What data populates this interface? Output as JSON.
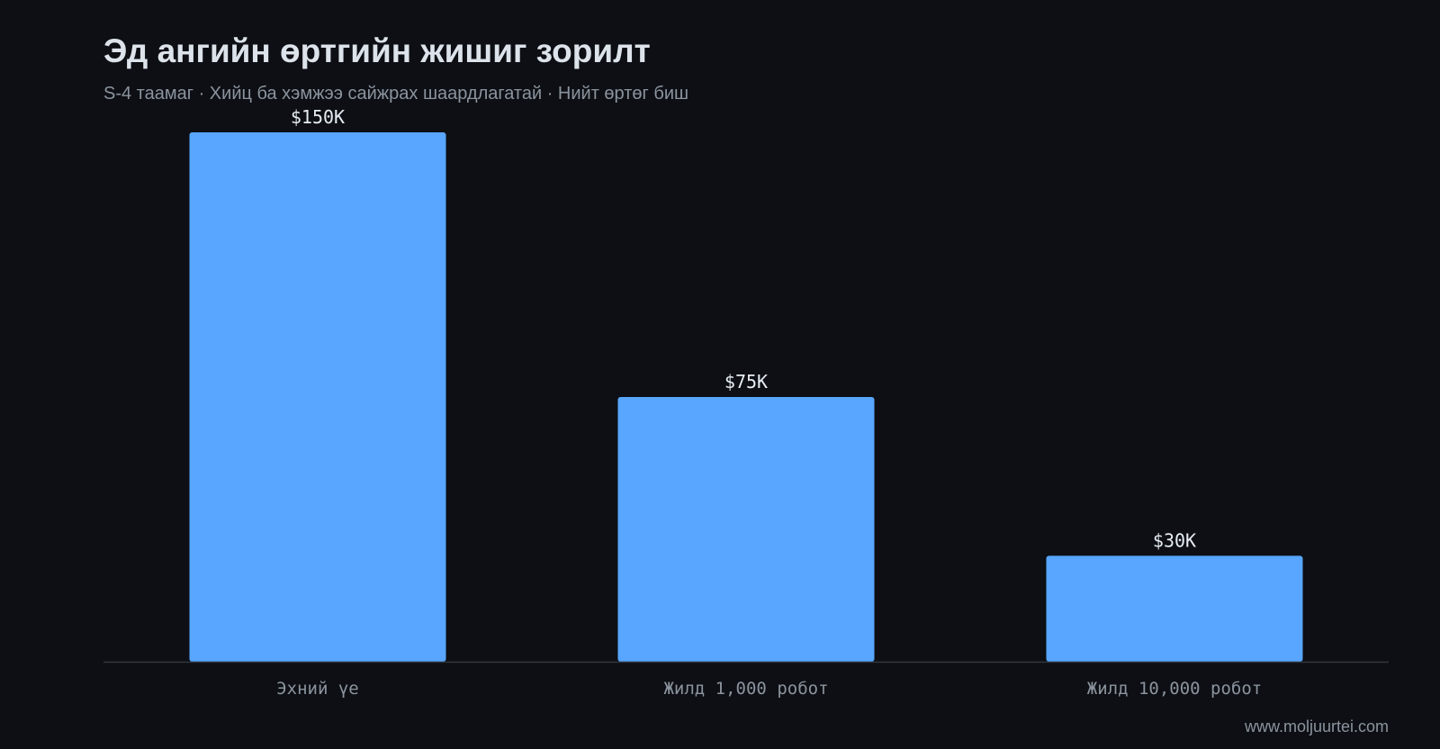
{
  "title": "Эд ангийн өртгийн жишиг зорилт",
  "subtitle": "S-4 таамаг · Хийц ба хэмжээ сайжрах шаардлагатай · Нийт өртөг биш",
  "watermark": "www.moljuurtei.com",
  "colors": {
    "background": "#0d0f14",
    "bar": "#58a6ff",
    "axis": "#30363d",
    "value_label": "#e6edf3",
    "tick_label": "#8b949e"
  },
  "chart_data": {
    "type": "bar",
    "categories": [
      "Эхний үе",
      "Жилд 1,000 робот",
      "Жилд 10,000 робот"
    ],
    "values": [
      150,
      75,
      30
    ],
    "value_labels": [
      "$150K",
      "$75K",
      "$30K"
    ],
    "ylim": [
      0,
      150
    ],
    "grid": false,
    "legend": "none"
  }
}
